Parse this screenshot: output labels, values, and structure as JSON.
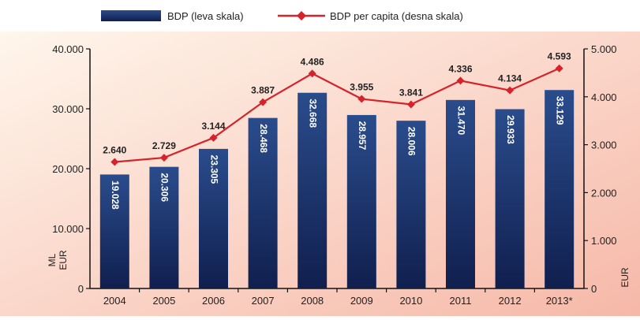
{
  "chart_data": {
    "type": "bar",
    "legend": {
      "placement": "top-left",
      "bar_label": "BDP (leva skala)",
      "line_label": "BDP per capita (desna skala)"
    },
    "categories": [
      "2004",
      "2005",
      "2006",
      "2007",
      "2008",
      "2009",
      "2010",
      "2011",
      "2012",
      "2013*"
    ],
    "series": [
      {
        "name": "BDP (leva skala)",
        "type": "bar",
        "axis": "left",
        "values": [
          19028,
          20306,
          23305,
          28468,
          32668,
          28957,
          28006,
          31470,
          29933,
          33129
        ],
        "labels": [
          "19.028",
          "20.306",
          "23.305",
          "28.468",
          "32.668",
          "28.957",
          "28.006",
          "31.470",
          "29.933",
          "33.129"
        ]
      },
      {
        "name": "BDP per capita (desna skala)",
        "type": "line",
        "axis": "right",
        "values": [
          2640,
          2729,
          3144,
          3887,
          4486,
          3955,
          3841,
          4336,
          4134,
          4593
        ],
        "labels": [
          "2.640",
          "2.729",
          "3.144",
          "3.887",
          "4.486",
          "3.955",
          "3.841",
          "4.336",
          "4.134",
          "4.593"
        ]
      }
    ],
    "y_left": {
      "range": [
        0,
        40000
      ],
      "ticks": [
        0,
        10000,
        20000,
        30000,
        40000
      ],
      "tick_labels": [
        "0",
        "10.000",
        "20.000",
        "30.000",
        "40.000"
      ],
      "label_line1": "ML",
      "label_line2": "EUR"
    },
    "y_right": {
      "range": [
        0,
        5000
      ],
      "ticks": [
        0,
        1000,
        2000,
        3000,
        4000,
        5000
      ],
      "tick_labels": [
        "0",
        "1.000",
        "2.000",
        "3.000",
        "4.000",
        "5.000"
      ],
      "label": "EUR"
    },
    "grid": false,
    "colors": {
      "bar_top": "#2a4c8c",
      "bar_bottom": "#101f4e",
      "line": "#d6222b",
      "background_from": "#fff6ec",
      "background_to": "#f6b8a8"
    }
  }
}
